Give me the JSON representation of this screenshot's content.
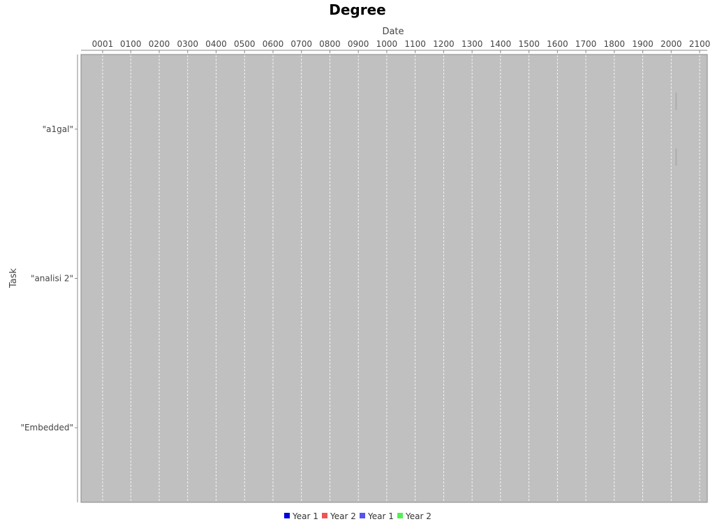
{
  "chart_data": {
    "type": "gantt",
    "title": "Degree",
    "xlabel": "Date",
    "ylabel": "Task",
    "x_ticks": [
      "0001",
      "0100",
      "0200",
      "0300",
      "0400",
      "0500",
      "0600",
      "0700",
      "0800",
      "0900",
      "1000",
      "1100",
      "1200",
      "1300",
      "1400",
      "1500",
      "1600",
      "1700",
      "1800",
      "1900",
      "2000",
      "2100"
    ],
    "xlim": [
      -75,
      2127
    ],
    "categories": [
      "\"a1gal\"",
      "\"analisi 2\"",
      "\"Embedded\""
    ],
    "grid": true,
    "plot_background": "#c0c0c0",
    "legend_position": "bottom",
    "legend": [
      {
        "label": "Year 1",
        "color": "#0000dd"
      },
      {
        "label": "Year 2",
        "color": "#ee5555"
      },
      {
        "label": "Year 1",
        "color": "#5555ee"
      },
      {
        "label": "Year 2",
        "color": "#55ee55"
      }
    ],
    "tasks": [
      {
        "category": "\"a1gal\"",
        "start": 2016,
        "end": 2019
      },
      {
        "category": "\"a1gal\"",
        "start": 2016,
        "end": 2019
      }
    ]
  }
}
